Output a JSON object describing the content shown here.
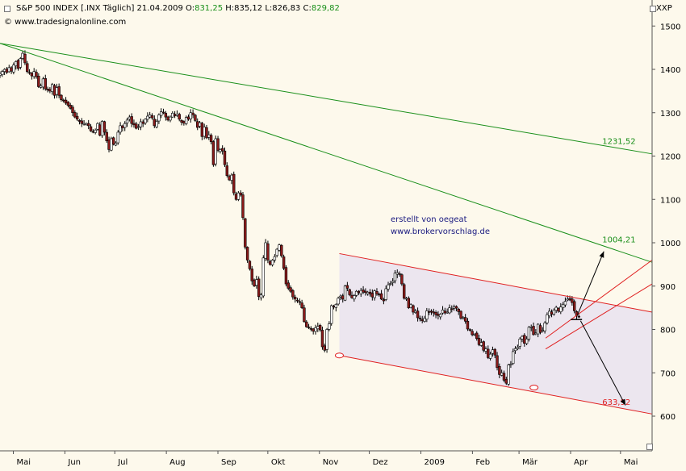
{
  "header": {
    "symbol": "S&P 500 INDEX [.INX Täglich]",
    "date": "21.04.2009",
    "o_label": "O:",
    "o_value": "831,25",
    "h_label": "H:",
    "h_value": "835,12",
    "l_label": "L:",
    "l_value": "826,83",
    "c_label": "C:",
    "c_value": "829,82",
    "site": "© www.tradesignalonline.com",
    "xxp": "XXP"
  },
  "annotation": {
    "line1": "erstellt von oegeat",
    "line2": "www.brokervorschlag.de"
  },
  "colors": {
    "background": "#fdf9ec",
    "green_line": "#1a8f1a",
    "red_line": "#e02020",
    "channel_fill": "#ece6ef",
    "candle_up": "#ffffff",
    "candle_down": "#8b1a1a",
    "text_blue": "#1a1a80"
  },
  "chart_data": {
    "type": "candlestick",
    "title": "S&P 500 INDEX [.INX Täglich]",
    "ylim": [
      520,
      1560
    ],
    "y_ticks": [
      600,
      700,
      800,
      900,
      1000,
      1100,
      1200,
      1300,
      1400,
      1500
    ],
    "x_ticks": [
      "Mai",
      "Jun",
      "Jul",
      "Aug",
      "Sep",
      "Okt",
      "Nov",
      "Dez",
      "2009",
      "Feb",
      "Mär",
      "Apr",
      "Mai"
    ],
    "x_tick_days": [
      0,
      31,
      61,
      92,
      123,
      153,
      184,
      214,
      245,
      276,
      304,
      335,
      365
    ],
    "x_range_days": [
      -8,
      384
    ],
    "closes": [
      1390,
      1395,
      1400,
      1393,
      1404,
      1396,
      1410,
      1418,
      1402,
      1425,
      1437,
      1415,
      1395,
      1392,
      1385,
      1395,
      1383,
      1360,
      1362,
      1378,
      1355,
      1352,
      1350,
      1365,
      1340,
      1358,
      1340,
      1330,
      1328,
      1322,
      1317,
      1310,
      1300,
      1290,
      1285,
      1280,
      1275,
      1275,
      1275,
      1270,
      1258,
      1255,
      1260,
      1275,
      1248,
      1280,
      1255,
      1235,
      1215,
      1240,
      1227,
      1230,
      1255,
      1270,
      1265,
      1275,
      1283,
      1290,
      1275,
      1272,
      1264,
      1268,
      1279,
      1275,
      1285,
      1292,
      1295,
      1288,
      1270,
      1280,
      1295,
      1302,
      1300,
      1290,
      1283,
      1290,
      1299,
      1293,
      1297,
      1285,
      1278,
      1276,
      1289,
      1285,
      1300,
      1295,
      1282,
      1266,
      1277,
      1245,
      1267,
      1242,
      1249,
      1233,
      1180,
      1240,
      1213,
      1215,
      1212,
      1180,
      1155,
      1145,
      1156,
      1115,
      1100,
      1115,
      1110,
      1058,
      990,
      960,
      940,
      912,
      900,
      915,
      876,
      880,
      965,
      1000,
      960,
      950,
      960,
      968,
      985,
      995,
      970,
      941,
      905,
      895,
      888,
      875,
      870,
      866,
      863,
      850,
      818,
      806,
      805,
      801,
      796,
      804,
      807,
      799,
      760,
      752,
      800,
      813,
      855,
      852,
      858,
      872,
      877,
      870,
      900,
      895,
      880,
      873,
      878,
      888,
      885,
      890,
      886,
      885,
      886,
      882,
      875,
      889,
      882,
      880,
      870,
      866,
      894,
      903,
      906,
      911,
      930,
      931,
      927,
      905,
      872,
      872,
      850,
      857,
      840,
      842,
      827,
      825,
      820,
      826,
      843,
      840,
      840,
      838,
      834,
      832,
      835,
      845,
      838,
      840,
      850,
      847,
      852,
      849,
      841,
      826,
      828,
      819,
      801,
      798,
      788,
      789,
      779,
      765,
      770,
      752,
      755,
      735,
      743,
      753,
      741,
      712,
      696,
      700,
      683,
      676,
      718,
      720,
      749,
      756,
      759,
      778,
      784,
      768,
      778,
      805,
      806,
      788,
      792,
      812,
      793,
      798,
      815,
      834,
      842,
      835,
      845,
      851,
      842,
      852,
      858,
      865,
      870,
      868,
      862,
      843,
      832,
      830
    ],
    "trendlines": [
      {
        "color": "green",
        "from": {
          "day": -8,
          "value": 1460
        },
        "to": {
          "day": 384,
          "value": 1205
        }
      },
      {
        "color": "green",
        "from": {
          "day": -8,
          "value": 1460
        },
        "to": {
          "day": 384,
          "value": 955
        }
      },
      {
        "color": "red",
        "from": {
          "day": 196,
          "value": 975
        },
        "to": {
          "day": 384,
          "value": 840
        }
      },
      {
        "color": "red",
        "from": {
          "day": 196,
          "value": 740
        },
        "to": {
          "day": 384,
          "value": 605
        }
      },
      {
        "color": "red",
        "from": {
          "day": 320,
          "value": 780
        },
        "to": {
          "day": 384,
          "value": 960
        }
      },
      {
        "color": "red",
        "from": {
          "day": 320,
          "value": 755
        },
        "to": {
          "day": 384,
          "value": 905
        }
      }
    ],
    "channel": {
      "from_day": 196,
      "upper_start": 975,
      "upper_end": 840,
      "lower_start": 740,
      "lower_end": 605
    },
    "level_labels": [
      {
        "text": "1231,52",
        "day": 355,
        "value": 1231.52,
        "color": "green"
      },
      {
        "text": "1004,21",
        "day": 355,
        "value": 1004.21,
        "color": "green"
      },
      {
        "text": "633,92",
        "day": 355,
        "value": 633.92,
        "color": "red"
      }
    ],
    "markers": [
      {
        "day": 196,
        "value": 740
      },
      {
        "day": 313,
        "value": 666
      }
    ],
    "arrows": [
      {
        "from": {
          "day": 339,
          "value": 832
        },
        "to": {
          "day": 355,
          "value": 980
        }
      },
      {
        "from": {
          "day": 341,
          "value": 820
        },
        "to": {
          "day": 368,
          "value": 625
        }
      }
    ],
    "stop_mark": {
      "day": 338,
      "value": 823
    }
  }
}
